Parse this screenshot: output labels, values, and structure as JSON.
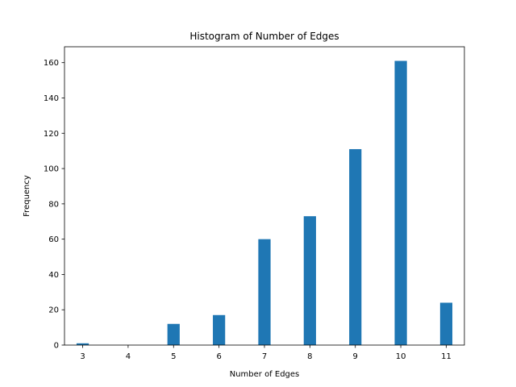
{
  "chart_data": {
    "type": "bar",
    "title": "Histogram of Number of Edges",
    "xlabel": "Number of Edges",
    "ylabel": "Frequency",
    "categories": [
      "3",
      "4",
      "5",
      "6",
      "7",
      "8",
      "9",
      "10",
      "11"
    ],
    "x": [
      3,
      5,
      6,
      7,
      8,
      9,
      10,
      11
    ],
    "values": [
      1,
      12,
      17,
      60,
      73,
      111,
      161,
      24
    ],
    "xlim": [
      2.6,
      11.4
    ],
    "ylim": [
      0,
      169
    ],
    "xticks": [
      3,
      4,
      5,
      6,
      7,
      8,
      9,
      10,
      11
    ],
    "yticks": [
      0,
      20,
      40,
      60,
      80,
      100,
      120,
      140,
      160
    ],
    "bin_width": 0.27,
    "grid": false,
    "colors": {
      "bar": "#1f77b4",
      "axes": "#000000",
      "background": "#ffffff"
    }
  }
}
